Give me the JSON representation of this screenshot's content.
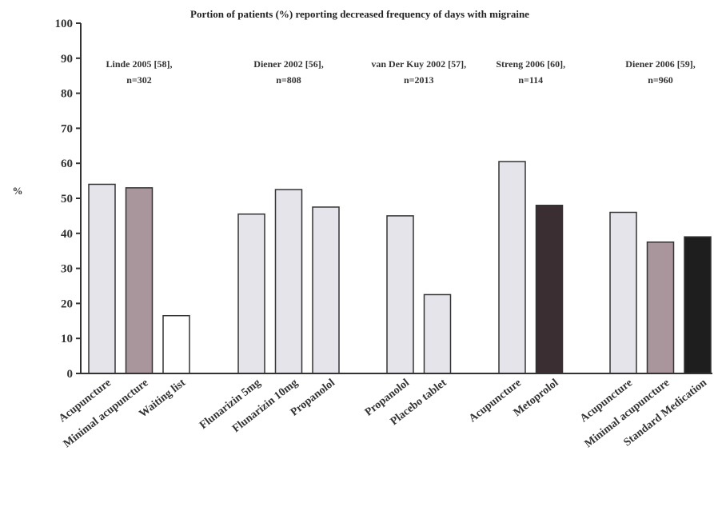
{
  "chart_data": {
    "type": "bar",
    "title": "Portion of patients (%) reporting decreased frequency of days with migraine",
    "ylabel": "%",
    "ylim": [
      0,
      100
    ],
    "yticks": [
      0,
      10,
      20,
      30,
      40,
      50,
      60,
      70,
      80,
      90,
      100
    ],
    "grid": false,
    "groups": [
      {
        "label": [
          "Linde 2005 [58],",
          "n=302"
        ],
        "bars": [
          {
            "category": "Acupuncture",
            "value": 54,
            "color": "#e4e4ea"
          },
          {
            "category": "Minimal acupuncture",
            "value": 53,
            "color": "#a8969c"
          },
          {
            "category": "Waiting list",
            "value": 16.5,
            "color": "#ffffff"
          }
        ]
      },
      {
        "label": [
          "Diener 2002 [56],",
          "n=808"
        ],
        "bars": [
          {
            "category": "Flunarizin 5mg",
            "value": 45.5,
            "color": "#e4e4ea"
          },
          {
            "category": "Flunarizin 10mg",
            "value": 52.5,
            "color": "#e4e4ea"
          },
          {
            "category": "Propanolol",
            "value": 47.5,
            "color": "#e4e4ea"
          }
        ]
      },
      {
        "label": [
          "van Der Kuy 2002 [57],",
          "n=2013"
        ],
        "bars": [
          {
            "category": "Propanolol",
            "value": 45,
            "color": "#e4e4ea"
          },
          {
            "category": "Placebo tablet",
            "value": 22.5,
            "color": "#e4e4ea"
          }
        ]
      },
      {
        "label": [
          "Streng 2006 [60],",
          "n=114"
        ],
        "bars": [
          {
            "category": "Acupuncture",
            "value": 60.5,
            "color": "#e4e4ea"
          },
          {
            "category": "Metoprolol",
            "value": 48,
            "color": "#3a2e33"
          }
        ]
      },
      {
        "label": [
          "Diener 2006 [59],",
          "n=960"
        ],
        "bars": [
          {
            "category": "Acupuncture",
            "value": 46,
            "color": "#e4e4ea"
          },
          {
            "category": "Minimal acupuncture",
            "value": 37.5,
            "color": "#a8969c"
          },
          {
            "category": "Standard Medication",
            "value": 39,
            "color": "#1e1e1e"
          }
        ]
      }
    ]
  }
}
